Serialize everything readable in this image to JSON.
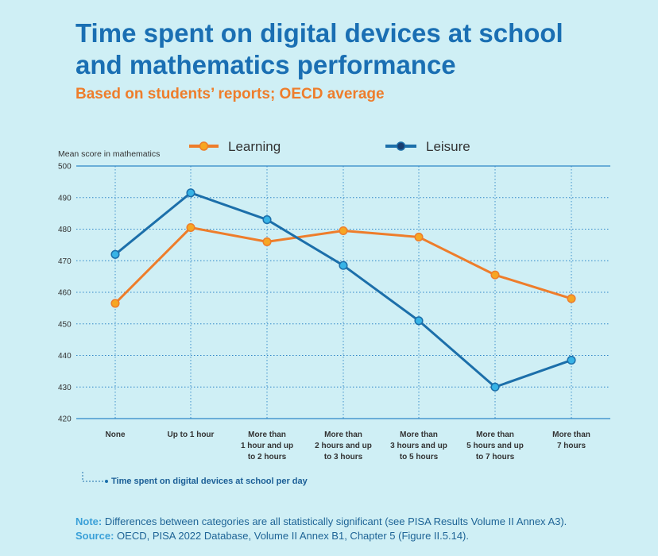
{
  "title_line1": "Time spent on digital devices at school",
  "title_line2": "and mathematics performance",
  "subtitle": "Based on students’ reports; OECD average",
  "note": {
    "note_label": "Note:",
    "note_text": "Differences between categories are all statistically significant (see PISA Results Volume II Annex A3).",
    "source_label": "Source:",
    "source_text": "OECD, PISA 2022 Database, Volume II Annex B1, Chapter 5 (Figure II.5.14)."
  },
  "colors": {
    "learning": "#ee7d2b",
    "learning_marker": "#f6a623",
    "leisure": "#1c6faa",
    "leisure_marker": "#37b3e6",
    "grid": "#2f86c7",
    "axis_text": "#333333"
  },
  "chart_data": {
    "type": "line",
    "ylabel": "Mean score in mathematics",
    "xlabel": "Time spent on digital devices at school per day",
    "ylim": [
      420,
      500
    ],
    "yticks": [
      500,
      490,
      480,
      470,
      460,
      450,
      440,
      430,
      420
    ],
    "categories": [
      [
        "None"
      ],
      [
        "Up to 1 hour"
      ],
      [
        "More than",
        "1 hour and up",
        "to 2 hours"
      ],
      [
        "More than",
        "2 hours and up",
        "to 3 hours"
      ],
      [
        "More than",
        "3 hours and up",
        "to 5 hours"
      ],
      [
        "More than",
        "5 hours and up",
        "to 7 hours"
      ],
      [
        "More than",
        "7 hours"
      ]
    ],
    "series": [
      {
        "name": "Learning",
        "values": [
          456.5,
          480.5,
          476,
          479.5,
          477.5,
          465.5,
          458
        ]
      },
      {
        "name": "Leisure",
        "values": [
          472,
          491.5,
          483,
          468.5,
          451,
          430,
          438.5
        ]
      }
    ]
  }
}
